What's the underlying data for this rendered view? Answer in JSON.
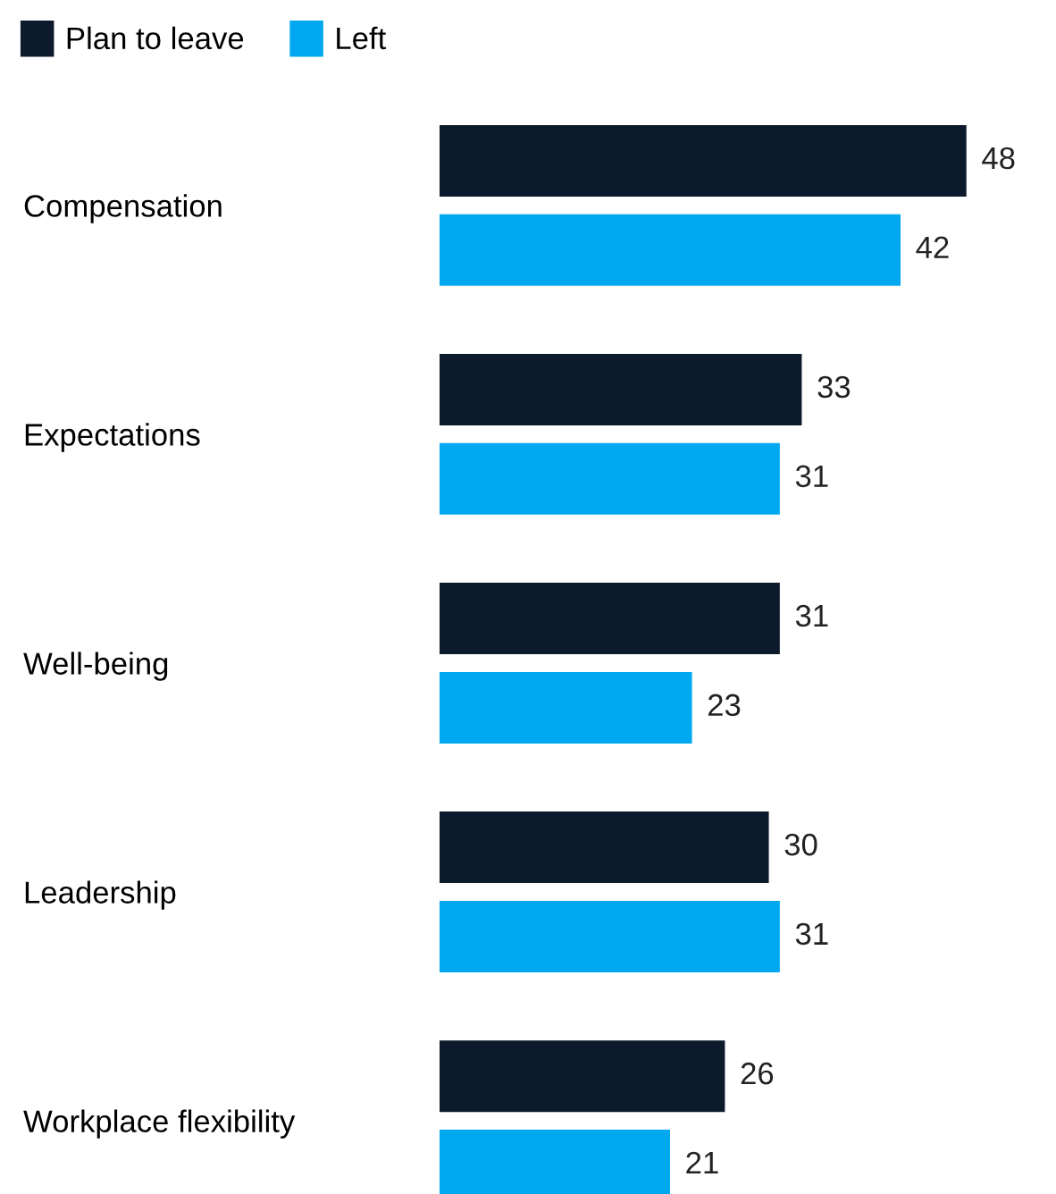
{
  "chart_data": {
    "type": "bar",
    "orientation": "horizontal",
    "categories": [
      "Compensation",
      "Expectations",
      "Well-being",
      "Leadership",
      "Workplace flexibility"
    ],
    "series": [
      {
        "name": "Plan to leave",
        "color": "#0d1a2b",
        "values": [
          48,
          33,
          31,
          30,
          26
        ]
      },
      {
        "name": "Left",
        "color": "#00a8f0",
        "values": [
          42,
          31,
          23,
          31,
          21
        ]
      }
    ],
    "data_labels": true,
    "legend": "top left",
    "grid": false
  }
}
